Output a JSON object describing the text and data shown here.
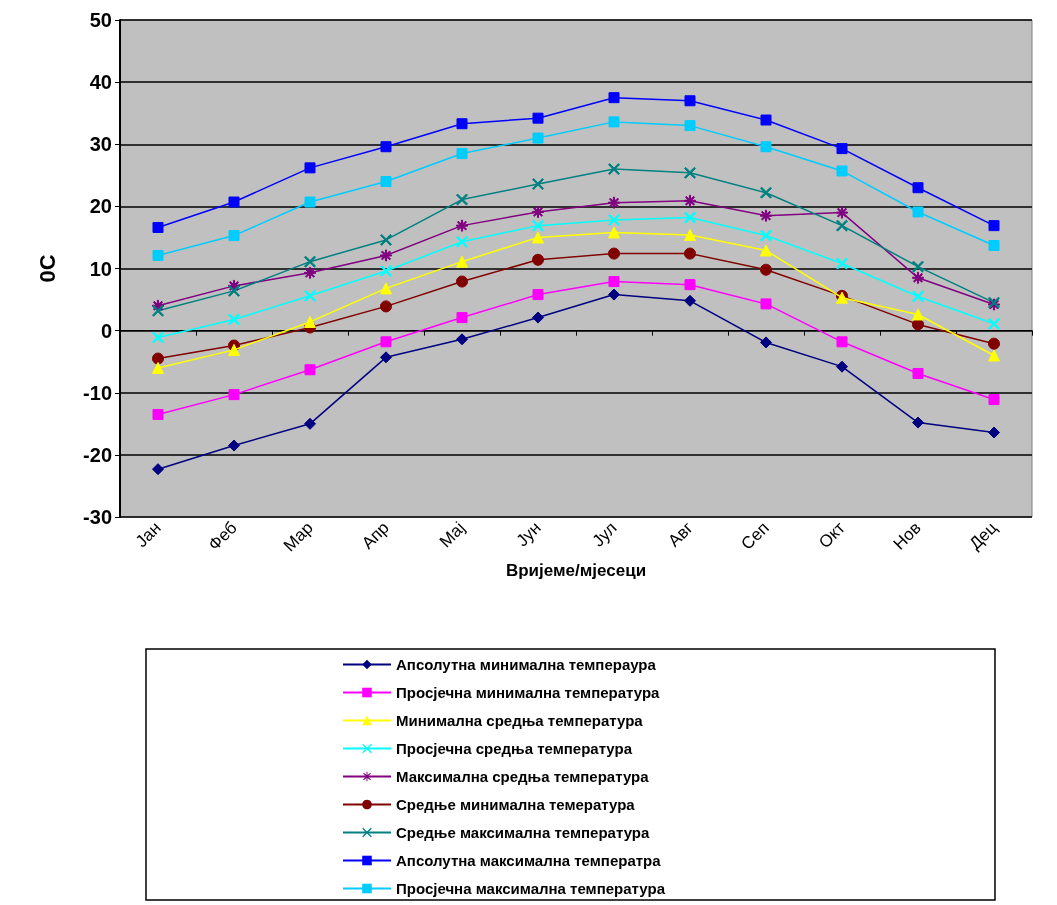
{
  "chart_data": {
    "type": "line",
    "xlabel": "Вријеме/мјесеци",
    "ylabel": "0C",
    "categories": [
      "Јан",
      "Феб",
      "Мар",
      "Апр",
      "Мај",
      "Јун",
      "Јул",
      "Авг",
      "Сеп",
      "Окт",
      "Нов",
      "Дец"
    ],
    "ylim": [
      -30,
      50
    ],
    "yticks": [
      -30,
      -20,
      -10,
      0,
      10,
      20,
      30,
      40,
      50
    ],
    "grid": "y",
    "legend": "bottom",
    "series": [
      {
        "name": "Апсолутна минимална темпераура",
        "color": "#000080",
        "marker": "diamond",
        "values": [
          -22.3,
          -18.5,
          -15,
          -4.3,
          -1.4,
          2.1,
          5.8,
          4.8,
          -1.9,
          -5.8,
          -14.8,
          -16.4
        ]
      },
      {
        "name": "Просјечна минимална температура",
        "color": "#ff00ff",
        "marker": "square",
        "values": [
          -13.5,
          -10.3,
          -6.3,
          -1.8,
          2.1,
          5.8,
          7.9,
          7.4,
          4.3,
          -1.8,
          -6.9,
          -11.1
        ]
      },
      {
        "name": "Минимална средња температура",
        "color": "#ffff00",
        "marker": "triangle",
        "values": [
          -6,
          -3.1,
          1.4,
          6.8,
          11.1,
          15,
          15.8,
          15.4,
          12.9,
          5.3,
          2.6,
          -4
        ]
      },
      {
        "name": "Просјечна средња температура",
        "color": "#00ffff",
        "marker": "cross",
        "values": [
          -1.1,
          1.8,
          5.6,
          9.6,
          14.3,
          16.9,
          17.8,
          18.2,
          15.3,
          10.8,
          5.5,
          1.1
        ]
      },
      {
        "name": "Максимална средња температура",
        "color": "#800080",
        "marker": "star",
        "values": [
          4,
          7.2,
          9.3,
          12.1,
          16.9,
          19.1,
          20.6,
          20.9,
          18.5,
          19,
          8.5,
          4.2
        ]
      },
      {
        "name": "Средње минимална темература",
        "color": "#800000",
        "marker": "circle",
        "values": [
          -4.5,
          -2.4,
          0.5,
          3.9,
          7.9,
          11.4,
          12.4,
          12.4,
          9.8,
          5.6,
          1,
          -2.1
        ]
      },
      {
        "name": "Средње максимална температура",
        "color": "#008080",
        "marker": "cross",
        "values": [
          3.2,
          6.4,
          11.1,
          14.6,
          21.1,
          23.6,
          26,
          25.4,
          22.2,
          16.9,
          10.3,
          4.5
        ]
      },
      {
        "name": "Апсолутна максимална температра",
        "color": "#0000ff",
        "marker": "square",
        "values": [
          16.6,
          20.7,
          26.2,
          29.6,
          33.3,
          34.2,
          37.5,
          37,
          33.9,
          29.3,
          23,
          16.9
        ]
      },
      {
        "name": "Просјечна максимална температура",
        "color": "#00ccff",
        "marker": "square",
        "values": [
          12.1,
          15.3,
          20.7,
          24,
          28.5,
          31,
          33.6,
          33,
          29.6,
          25.7,
          19.1,
          13.7
        ]
      }
    ]
  }
}
